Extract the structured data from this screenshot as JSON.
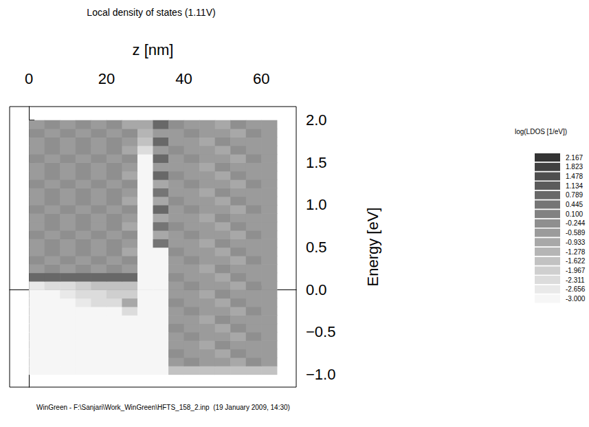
{
  "chart_data": {
    "type": "heatmap",
    "title": "Local density of states (1.11V)",
    "x_label": "z [nm]",
    "y_label": "Energy [eV]",
    "annotation": "WinGreen - F:\\Sanjari\\Work_WinGreen\\HFTS_158_2.inp  (19 January 2009, 14:30)",
    "grid": false,
    "xlim": [
      -5,
      69
    ],
    "xticks": [
      0,
      20,
      40,
      60
    ],
    "ylim": [
      -1.15,
      2.16
    ],
    "yticks": [
      {
        "value": -1.0,
        "label": "−1.0"
      },
      {
        "value": -0.5,
        "label": "−0.5"
      },
      {
        "value": 0.0,
        "label": "0.0"
      },
      {
        "value": 0.5,
        "label": "0.5"
      },
      {
        "value": 1.0,
        "label": "1.0"
      },
      {
        "value": 1.5,
        "label": "1.5"
      },
      {
        "value": 2.0,
        "label": "2.0"
      }
    ],
    "x": [
      2,
      6,
      10,
      14,
      18,
      22,
      26,
      30,
      34,
      38,
      42,
      46,
      50,
      54,
      58,
      62
    ],
    "y": [
      -0.95,
      -0.85,
      -0.75,
      -0.65,
      -0.55,
      -0.45,
      -0.35,
      -0.25,
      -0.15,
      -0.05,
      0.05,
      0.15,
      0.25,
      0.35,
      0.45,
      0.55,
      0.65,
      0.75,
      0.85,
      0.95,
      1.05,
      1.15,
      1.25,
      1.35,
      1.45,
      1.55,
      1.65,
      1.75,
      1.85,
      1.95
    ],
    "cells": [
      [
        -3,
        -3,
        -3,
        -3,
        -3,
        -3,
        -3,
        -3,
        -3,
        -1.5,
        -1.5,
        -1.5,
        -1.5,
        -1.5,
        -1.5,
        -1.5
      ],
      [
        -3,
        -3,
        -3,
        -3,
        -3,
        -3,
        -3,
        -3,
        -3,
        -0.4,
        -0.2,
        -0.5,
        -0.3,
        -0.6,
        -0.2,
        -0.4
      ],
      [
        -3,
        -3,
        -3,
        -3,
        -3,
        -3,
        -3,
        -3,
        -3,
        -0.2,
        -0.5,
        -0.3,
        -0.6,
        -0.2,
        -0.4,
        -0.3
      ],
      [
        -3,
        -3,
        -3,
        -3,
        -3,
        -3,
        -3,
        -3,
        -3,
        -0.5,
        -0.3,
        -0.6,
        -0.2,
        -0.4,
        -0.3,
        -0.5
      ],
      [
        -3,
        -3,
        -3,
        -3,
        -3,
        -3,
        -3,
        -3,
        -3,
        -0.4,
        -0.2,
        -0.5,
        -0.3,
        -0.6,
        -0.2,
        -0.4
      ],
      [
        -3,
        -3,
        -3,
        -3,
        -3,
        -3,
        -3,
        -3,
        -3,
        -0.2,
        -0.5,
        -0.3,
        -0.6,
        -0.2,
        -0.4,
        -0.3
      ],
      [
        -3,
        -3,
        -3,
        -3,
        -3,
        -3,
        -3,
        -3,
        -3,
        -0.5,
        -0.3,
        -0.6,
        -0.2,
        -0.4,
        -0.3,
        -0.5
      ],
      [
        -3,
        -3,
        -3,
        -3,
        -3,
        -3,
        -2.3,
        -3,
        -3,
        -0.4,
        -0.2,
        -0.5,
        -0.3,
        -0.6,
        -0.2,
        -0.4
      ],
      [
        -3,
        -3,
        -3,
        -2.5,
        -2.3,
        -2.0,
        -0.9,
        -3,
        -3,
        -0.2,
        -0.5,
        -0.3,
        -0.6,
        -0.2,
        -0.4,
        -0.3
      ],
      [
        -3,
        -3,
        -2.6,
        -2.2,
        -2.0,
        -1.8,
        -1.7,
        -3,
        -3,
        -0.5,
        -0.3,
        -0.6,
        -0.2,
        -0.4,
        -0.3,
        -0.5
      ],
      [
        -2.6,
        -2.3,
        -2.0,
        -1.8,
        -1.6,
        -1.5,
        -1.6,
        -3,
        -3,
        -0.4,
        -0.2,
        -0.5,
        -0.3,
        -0.6,
        -0.2,
        -0.4
      ],
      [
        1.1,
        1.1,
        1.1,
        1.1,
        1.1,
        1.1,
        1.1,
        -3,
        -3,
        -0.2,
        -0.5,
        -0.3,
        -0.6,
        -0.2,
        -0.4,
        -0.3
      ],
      [
        -0.3,
        -0.1,
        -0.4,
        -0.2,
        -0.5,
        -0.1,
        -0.3,
        -3,
        -3,
        -0.5,
        -0.3,
        -0.6,
        -0.2,
        -0.4,
        -0.3,
        -0.5
      ],
      [
        -0.1,
        -0.4,
        -0.2,
        -0.5,
        -0.1,
        -0.3,
        -0.2,
        -3,
        -3,
        -0.4,
        -0.2,
        -0.5,
        -0.3,
        -0.6,
        -0.2,
        -0.4
      ],
      [
        -0.4,
        -0.2,
        -0.5,
        -0.1,
        -0.3,
        -0.2,
        -0.6,
        -3,
        -3,
        -0.2,
        -0.5,
        -0.3,
        -0.6,
        -0.2,
        -0.4,
        -0.3
      ],
      [
        -0.3,
        -0.1,
        -0.4,
        -0.2,
        -0.5,
        -0.1,
        -0.3,
        -3,
        0.7,
        -0.5,
        -0.3,
        -0.6,
        -0.2,
        -0.4,
        -0.3,
        -0.5
      ],
      [
        -0.1,
        -0.4,
        -0.2,
        -0.5,
        -0.1,
        -0.3,
        -0.2,
        -3,
        -0.8,
        -0.4,
        -0.2,
        -0.5,
        -0.3,
        -0.6,
        -0.2,
        -0.4
      ],
      [
        -0.4,
        -0.2,
        -0.5,
        -0.1,
        -0.3,
        -0.2,
        -0.6,
        -3,
        0.6,
        -0.2,
        -0.5,
        -0.3,
        -0.6,
        -0.2,
        -0.4,
        -0.3
      ],
      [
        -0.3,
        -0.1,
        -0.4,
        -0.2,
        -0.5,
        -0.1,
        -0.3,
        -3,
        -0.7,
        -0.5,
        -0.3,
        -0.6,
        -0.2,
        -0.4,
        -0.3,
        -0.5
      ],
      [
        -0.1,
        -0.4,
        -0.2,
        -0.5,
        -0.1,
        -0.3,
        -0.2,
        -3,
        0.8,
        -0.4,
        -0.2,
        -0.5,
        -0.3,
        -0.6,
        -0.2,
        -0.4
      ],
      [
        -0.4,
        -0.2,
        -0.5,
        -0.1,
        -0.3,
        -0.2,
        -0.6,
        -3,
        -0.6,
        -0.2,
        -0.5,
        -0.3,
        -0.6,
        -0.2,
        -0.4,
        -0.3
      ],
      [
        -0.3,
        -0.1,
        -0.4,
        -0.2,
        -0.5,
        -0.1,
        -0.3,
        -3,
        0.7,
        -0.5,
        -0.3,
        -0.6,
        -0.2,
        -0.4,
        -0.3,
        -0.5
      ],
      [
        -0.1,
        -0.4,
        -0.2,
        -0.5,
        -0.1,
        -0.3,
        -0.2,
        -3,
        -0.7,
        -0.4,
        -0.2,
        -0.5,
        -0.3,
        -0.6,
        -0.2,
        -0.4
      ],
      [
        -0.4,
        -0.2,
        -0.5,
        -0.1,
        -0.3,
        -0.2,
        -0.6,
        -3,
        0.9,
        -0.2,
        -0.5,
        -0.3,
        -0.6,
        -0.2,
        -0.4,
        -0.3
      ],
      [
        -0.3,
        -0.1,
        -0.4,
        -0.2,
        -0.5,
        -0.1,
        -0.3,
        -3,
        -0.5,
        -0.5,
        -0.3,
        -0.6,
        -0.2,
        -0.4,
        -0.3,
        -0.5
      ],
      [
        -0.1,
        -0.4,
        -0.2,
        -0.5,
        -0.1,
        -0.3,
        -0.2,
        -3,
        0.8,
        -0.4,
        -0.2,
        -0.5,
        -0.3,
        -0.6,
        -0.2,
        -0.4
      ],
      [
        -0.4,
        -0.2,
        -0.5,
        -0.1,
        -0.3,
        -0.2,
        -0.6,
        -2.0,
        -0.4,
        -0.2,
        -0.5,
        -0.3,
        -0.6,
        -0.2,
        -0.4,
        -0.3
      ],
      [
        -0.3,
        -0.1,
        -0.4,
        -0.2,
        -0.5,
        -0.1,
        -0.3,
        -1.6,
        1.0,
        -0.5,
        -0.3,
        -0.6,
        -0.2,
        -0.4,
        -0.3,
        -0.5
      ],
      [
        -0.1,
        -0.4,
        -0.2,
        -0.5,
        -0.1,
        -0.3,
        -0.2,
        -1.0,
        -0.3,
        -0.4,
        -0.2,
        -0.5,
        -0.3,
        -0.6,
        -0.2,
        -0.4
      ],
      [
        -0.4,
        -0.2,
        -0.5,
        -0.1,
        -0.3,
        -0.2,
        -0.6,
        -0.6,
        1.1,
        -0.2,
        -0.5,
        -0.3,
        -0.6,
        -0.2,
        -0.4,
        -0.3
      ]
    ],
    "colorbar": {
      "title": "log(LDOS [1/eV])",
      "range": [
        -3,
        2.167
      ],
      "ticks": [
        {
          "value": -3,
          "label": "-3.000"
        },
        -2.656,
        -2.311,
        -1.967,
        -1.622,
        -1.278,
        -0.933,
        -0.589,
        -0.244,
        {
          "value": 0.1,
          "label": "0.100"
        },
        0.445,
        0.789,
        1.134,
        1.478,
        1.823,
        2.167
      ]
    }
  }
}
